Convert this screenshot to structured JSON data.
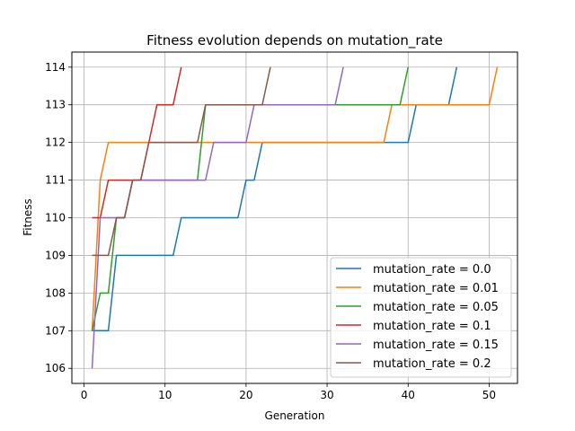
{
  "chart_data": {
    "type": "line",
    "title": "Fitness evolution depends on mutation_rate",
    "xlabel": "Generation",
    "ylabel": "Fitness",
    "xlim": [
      -1.5,
      53.5
    ],
    "ylim": [
      105.6,
      114.4
    ],
    "xticks": [
      0,
      10,
      20,
      30,
      40,
      50
    ],
    "yticks": [
      106,
      107,
      108,
      109,
      110,
      111,
      112,
      113,
      114
    ],
    "grid": true,
    "legend_position": "lower right",
    "series": [
      {
        "name": "mutation_rate = 0.0",
        "color": "#1f77b4",
        "x": [
          1,
          2,
          3,
          4,
          5,
          6,
          7,
          8,
          9,
          10,
          11,
          12,
          13,
          14,
          15,
          16,
          17,
          18,
          19,
          20,
          21,
          22,
          23,
          24,
          25,
          26,
          27,
          28,
          29,
          30,
          31,
          32,
          33,
          34,
          35,
          36,
          37,
          38,
          39,
          40,
          41,
          42,
          43,
          44,
          45,
          46
        ],
        "y": [
          107,
          107,
          107,
          109,
          109,
          109,
          109,
          109,
          109,
          109,
          109,
          110,
          110,
          110,
          110,
          110,
          110,
          110,
          110,
          111,
          111,
          112,
          112,
          112,
          112,
          112,
          112,
          112,
          112,
          112,
          112,
          112,
          112,
          112,
          112,
          112,
          112,
          112,
          112,
          112,
          113,
          113,
          113,
          113,
          113,
          114
        ]
      },
      {
        "name": "mutation_rate = 0.01",
        "color": "#ff7f0e",
        "x": [
          1,
          2,
          3,
          4,
          5,
          6,
          7,
          8,
          9,
          10,
          11,
          12,
          13,
          14,
          15,
          16,
          17,
          18,
          19,
          20,
          21,
          22,
          23,
          24,
          25,
          26,
          27,
          28,
          29,
          30,
          31,
          32,
          33,
          34,
          35,
          36,
          37,
          38,
          39,
          40,
          41,
          42,
          43,
          44,
          45,
          46,
          47,
          48,
          49,
          50,
          51
        ],
        "y": [
          107,
          111,
          112,
          112,
          112,
          112,
          112,
          112,
          112,
          112,
          112,
          112,
          112,
          112,
          112,
          112,
          112,
          112,
          112,
          112,
          112,
          112,
          112,
          112,
          112,
          112,
          112,
          112,
          112,
          112,
          112,
          112,
          112,
          112,
          112,
          112,
          112,
          113,
          113,
          113,
          113,
          113,
          113,
          113,
          113,
          113,
          113,
          113,
          113,
          113,
          114
        ]
      },
      {
        "name": "mutation_rate = 0.05",
        "color": "#2ca02c",
        "x": [
          1,
          2,
          3,
          4,
          5,
          6,
          7,
          8,
          9,
          10,
          11,
          12,
          13,
          14,
          15,
          16,
          17,
          18,
          19,
          20,
          21,
          22,
          23,
          24,
          25,
          26,
          27,
          28,
          29,
          30,
          31,
          32,
          33,
          34,
          35,
          36,
          37,
          38,
          39,
          40
        ],
        "y": [
          107,
          108,
          108,
          110,
          110,
          111,
          111,
          111,
          111,
          111,
          111,
          111,
          111,
          111,
          113,
          113,
          113,
          113,
          113,
          113,
          113,
          113,
          113,
          113,
          113,
          113,
          113,
          113,
          113,
          113,
          113,
          113,
          113,
          113,
          113,
          113,
          113,
          113,
          113,
          114
        ]
      },
      {
        "name": "mutation_rate = 0.1",
        "color": "#d62728",
        "x": [
          1,
          2,
          3,
          4,
          5,
          6,
          7,
          8,
          9,
          10,
          11,
          12
        ],
        "y": [
          110,
          110,
          111,
          111,
          111,
          111,
          111,
          112,
          113,
          113,
          113,
          114
        ]
      },
      {
        "name": "mutation_rate = 0.15",
        "color": "#9467bd",
        "x": [
          1,
          2,
          3,
          4,
          5,
          6,
          7,
          8,
          9,
          10,
          11,
          12,
          13,
          14,
          15,
          16,
          17,
          18,
          19,
          20,
          21,
          22,
          23,
          24,
          25,
          26,
          27,
          28,
          29,
          30,
          31,
          32
        ],
        "y": [
          106,
          110,
          110,
          110,
          110,
          111,
          111,
          111,
          111,
          111,
          111,
          111,
          111,
          111,
          111,
          112,
          112,
          112,
          112,
          112,
          113,
          113,
          113,
          113,
          113,
          113,
          113,
          113,
          113,
          113,
          113,
          114
        ]
      },
      {
        "name": "mutation_rate = 0.2",
        "color": "#8c564b",
        "x": [
          1,
          2,
          3,
          4,
          5,
          6,
          7,
          8,
          9,
          10,
          11,
          12,
          13,
          14,
          15,
          16,
          17,
          18,
          19,
          20,
          21,
          22,
          23
        ],
        "y": [
          109,
          109,
          109,
          110,
          110,
          111,
          111,
          112,
          112,
          112,
          112,
          112,
          112,
          112,
          113,
          113,
          113,
          113,
          113,
          113,
          113,
          113,
          114
        ]
      }
    ]
  }
}
